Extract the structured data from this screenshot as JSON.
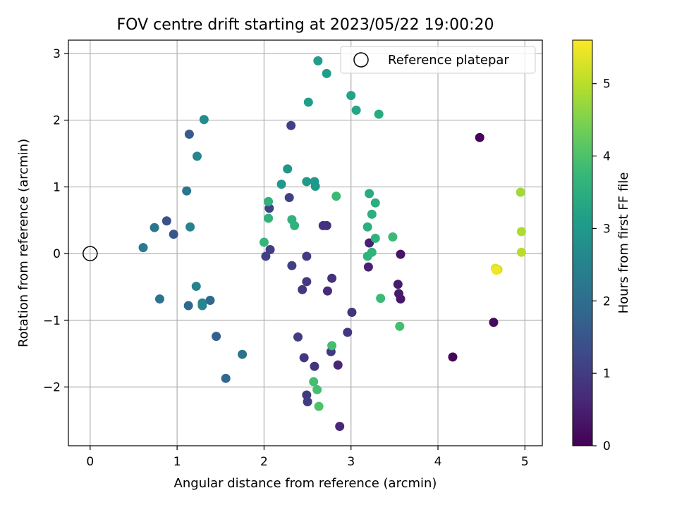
{
  "chart_data": {
    "type": "scatter",
    "title": "FOV centre drift starting at 2023/05/22 19:00:20",
    "xlabel": "Angular distance from reference (arcmin)",
    "ylabel": "Rotation from reference (arcmin)",
    "xlim": [
      -0.25,
      5.2
    ],
    "ylim": [
      -2.88,
      3.2
    ],
    "xticks": [
      0,
      1,
      2,
      3,
      4,
      5
    ],
    "yticks": [
      -2,
      -1,
      0,
      1,
      2,
      3
    ],
    "grid": true,
    "legend": {
      "position": "top-right",
      "label": "Reference platepar"
    },
    "reference_point": {
      "x": 0,
      "y": 0
    },
    "colorbar": {
      "label": "Hours from first FF file",
      "colormap": "viridis",
      "range": [
        0,
        5.6
      ],
      "ticks": [
        0,
        1,
        2,
        3,
        4,
        5
      ]
    },
    "colormap_stops": [
      "#440154",
      "#482878",
      "#3e4989",
      "#31688e",
      "#26828e",
      "#1f9e89",
      "#35b779",
      "#6ece58",
      "#b5de2b",
      "#fde725"
    ],
    "points": [
      {
        "x": 4.48,
        "y": 1.74,
        "c": 0.05
      },
      {
        "x": 4.17,
        "y": -1.55,
        "c": 0.1
      },
      {
        "x": 4.64,
        "y": -1.03,
        "c": 0.15
      },
      {
        "x": 3.57,
        "y": -0.68,
        "c": 0.35
      },
      {
        "x": 3.57,
        "y": -0.01,
        "c": 0.3
      },
      {
        "x": 3.55,
        "y": -0.6,
        "c": 0.4
      },
      {
        "x": 3.54,
        "y": -0.46,
        "c": 0.45
      },
      {
        "x": 3.21,
        "y": 0.16,
        "c": 0.5
      },
      {
        "x": 3.2,
        "y": -0.2,
        "c": 0.55
      },
      {
        "x": 2.85,
        "y": -1.67,
        "c": 0.6
      },
      {
        "x": 2.87,
        "y": -2.59,
        "c": 0.65
      },
      {
        "x": 2.73,
        "y": -0.56,
        "c": 0.7
      },
      {
        "x": 2.72,
        "y": 0.42,
        "c": 0.75
      },
      {
        "x": 2.68,
        "y": 0.42,
        "c": 0.8
      },
      {
        "x": 3.01,
        "y": -0.88,
        "c": 0.85
      },
      {
        "x": 2.96,
        "y": -1.18,
        "c": 0.9
      },
      {
        "x": 2.77,
        "y": -1.47,
        "c": 0.95
      },
      {
        "x": 2.78,
        "y": -0.37,
        "c": 0.8
      },
      {
        "x": 2.58,
        "y": -1.69,
        "c": 0.85
      },
      {
        "x": 2.46,
        "y": -1.56,
        "c": 0.9
      },
      {
        "x": 2.49,
        "y": -2.12,
        "c": 0.95
      },
      {
        "x": 2.5,
        "y": -2.22,
        "c": 1.0
      },
      {
        "x": 2.39,
        "y": -1.25,
        "c": 1.0
      },
      {
        "x": 2.44,
        "y": -0.54,
        "c": 0.9
      },
      {
        "x": 2.49,
        "y": -0.42,
        "c": 0.95
      },
      {
        "x": 2.49,
        "y": -0.04,
        "c": 1.0
      },
      {
        "x": 2.32,
        "y": -0.18,
        "c": 1.05
      },
      {
        "x": 2.07,
        "y": 0.06,
        "c": 1.0
      },
      {
        "x": 2.02,
        "y": -0.04,
        "c": 1.1
      },
      {
        "x": 2.06,
        "y": 0.68,
        "c": 1.1
      },
      {
        "x": 2.29,
        "y": 0.84,
        "c": 1.1
      },
      {
        "x": 2.31,
        "y": 1.92,
        "c": 1.1
      },
      {
        "x": 0.88,
        "y": 0.49,
        "c": 1.4
      },
      {
        "x": 0.96,
        "y": 0.29,
        "c": 1.5
      },
      {
        "x": 1.14,
        "y": 1.79,
        "c": 1.6
      },
      {
        "x": 1.45,
        "y": -1.24,
        "c": 1.7
      },
      {
        "x": 1.56,
        "y": -1.87,
        "c": 1.9
      },
      {
        "x": 1.38,
        "y": -0.7,
        "c": 1.9
      },
      {
        "x": 1.13,
        "y": -0.78,
        "c": 1.9
      },
      {
        "x": 1.75,
        "y": -1.51,
        "c": 2.1
      },
      {
        "x": 0.8,
        "y": -0.68,
        "c": 2.1
      },
      {
        "x": 0.74,
        "y": 0.39,
        "c": 2.2
      },
      {
        "x": 0.61,
        "y": 0.09,
        "c": 2.3
      },
      {
        "x": 1.11,
        "y": 0.94,
        "c": 2.2
      },
      {
        "x": 1.15,
        "y": 0.4,
        "c": 2.5
      },
      {
        "x": 1.22,
        "y": -0.49,
        "c": 2.5
      },
      {
        "x": 1.29,
        "y": -0.74,
        "c": 2.5
      },
      {
        "x": 1.29,
        "y": -0.78,
        "c": 2.6
      },
      {
        "x": 1.23,
        "y": 1.46,
        "c": 2.6
      },
      {
        "x": 1.31,
        "y": 2.01,
        "c": 2.7
      },
      {
        "x": 2.27,
        "y": 1.27,
        "c": 2.9
      },
      {
        "x": 2.2,
        "y": 1.04,
        "c": 3.0
      },
      {
        "x": 2.49,
        "y": 1.08,
        "c": 3.0
      },
      {
        "x": 2.58,
        "y": 1.08,
        "c": 3.0
      },
      {
        "x": 2.59,
        "y": 1.01,
        "c": 3.0
      },
      {
        "x": 2.62,
        "y": 2.89,
        "c": 3.1
      },
      {
        "x": 2.72,
        "y": 2.7,
        "c": 3.1
      },
      {
        "x": 2.51,
        "y": 2.27,
        "c": 3.1
      },
      {
        "x": 3.0,
        "y": 2.37,
        "c": 3.2
      },
      {
        "x": 3.06,
        "y": 2.15,
        "c": 3.3
      },
      {
        "x": 3.32,
        "y": 2.09,
        "c": 3.4
      },
      {
        "x": 3.21,
        "y": 0.9,
        "c": 3.4
      },
      {
        "x": 3.28,
        "y": 0.76,
        "c": 3.5
      },
      {
        "x": 3.24,
        "y": 0.59,
        "c": 3.5
      },
      {
        "x": 3.19,
        "y": 0.4,
        "c": 3.5
      },
      {
        "x": 3.28,
        "y": 0.23,
        "c": 3.6
      },
      {
        "x": 3.24,
        "y": 0.02,
        "c": 3.6
      },
      {
        "x": 3.19,
        "y": -0.04,
        "c": 3.6
      },
      {
        "x": 2.05,
        "y": 0.78,
        "c": 3.6
      },
      {
        "x": 2.05,
        "y": 0.53,
        "c": 3.6
      },
      {
        "x": 2.32,
        "y": 0.51,
        "c": 3.6
      },
      {
        "x": 2.35,
        "y": 0.42,
        "c": 3.6
      },
      {
        "x": 2.0,
        "y": 0.17,
        "c": 3.7
      },
      {
        "x": 2.83,
        "y": 0.86,
        "c": 3.8
      },
      {
        "x": 3.48,
        "y": 0.25,
        "c": 3.8
      },
      {
        "x": 3.34,
        "y": -0.67,
        "c": 3.8
      },
      {
        "x": 3.56,
        "y": -1.09,
        "c": 3.9
      },
      {
        "x": 2.78,
        "y": -1.38,
        "c": 3.9
      },
      {
        "x": 2.57,
        "y": -1.92,
        "c": 3.9
      },
      {
        "x": 2.61,
        "y": -2.04,
        "c": 3.9
      },
      {
        "x": 2.63,
        "y": -2.29,
        "c": 4.0
      },
      {
        "x": 4.95,
        "y": 0.92,
        "c": 4.8
      },
      {
        "x": 4.96,
        "y": 0.33,
        "c": 4.9
      },
      {
        "x": 4.96,
        "y": 0.02,
        "c": 5.0
      },
      {
        "x": 4.66,
        "y": -0.22,
        "c": 5.3
      },
      {
        "x": 4.69,
        "y": -0.24,
        "c": 5.2
      },
      {
        "x": 4.67,
        "y": -0.25,
        "c": 5.5
      }
    ]
  }
}
